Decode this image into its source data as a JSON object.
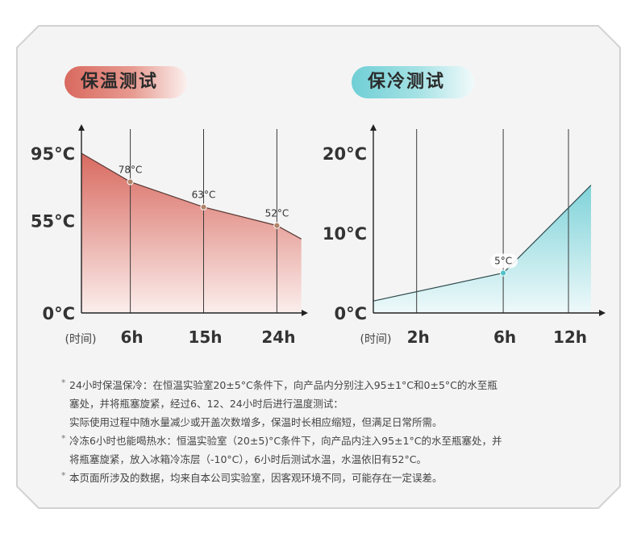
{
  "panels": {
    "warm": {
      "title": "保温测试"
    },
    "cold": {
      "title": "保冷测试"
    }
  },
  "chart_data": [
    {
      "type": "area",
      "title": "保温测试",
      "xlabel": "(时间)",
      "ylabel": "",
      "x_ticks": [
        "6h",
        "15h",
        "24h"
      ],
      "y_ticks": [
        "0°C",
        "55°C",
        "95°C"
      ],
      "series": [
        {
          "x": [
            0,
            6,
            15,
            24,
            27
          ],
          "y": [
            95,
            78,
            63,
            52,
            44
          ]
        }
      ],
      "data_labels": [
        {
          "x": 6,
          "y": 78,
          "text": "78°C"
        },
        {
          "x": 15,
          "y": 63,
          "text": "63°C"
        },
        {
          "x": 24,
          "y": 52,
          "text": "52°C"
        }
      ],
      "grid": "vertical",
      "colors": {
        "line": "#5a3a37",
        "fill_top": "#d86a60",
        "fill_bottom": "#fbeeec",
        "marker": "#b08468"
      }
    },
    {
      "type": "area",
      "title": "保冷测试",
      "xlabel": "(时间)",
      "ylabel": "",
      "x_ticks": [
        "2h",
        "6h",
        "12h"
      ],
      "y_ticks": [
        "0°C",
        "10°C",
        "20°C"
      ],
      "series": [
        {
          "x": [
            0,
            6,
            15
          ],
          "y": [
            1.5,
            5,
            16
          ]
        }
      ],
      "data_labels": [
        {
          "x": 6,
          "y": 5,
          "text": "5°C"
        }
      ],
      "grid": "vertical",
      "colors": {
        "line": "#2f4b4f",
        "fill_top": "#7fd3d9",
        "fill_bottom": "#eef9fa",
        "marker": "#4fc3c9"
      }
    }
  ],
  "notes": [
    {
      "lines": [
        "24小时保温保冷：在恒温实验室20±5°C条件下，向产品内分别注入95±1°C和0±5°C的水至瓶",
        "塞处，并将瓶塞旋紧，经过6、12、24小时后进行温度测试：",
        "实际使用过程中随水量减少或开盖次数增多，保温时长相应缩短，但满足日常所需。"
      ]
    },
    {
      "lines": [
        "冷冻6小时也能喝热水：恒温实验室（20±5)°C条件下，向产品内注入95±1°C的水至瓶塞处，并",
        "将瓶塞旋紧，放入冰箱冷冻层（-10°C），6小时后测试水温，水温依旧有52°C。"
      ]
    },
    {
      "lines": [
        "本页面所涉及的数据，均来自本公司实验室，因客观环境不同，可能存在一定误差。"
      ]
    }
  ],
  "note_marker": "*"
}
